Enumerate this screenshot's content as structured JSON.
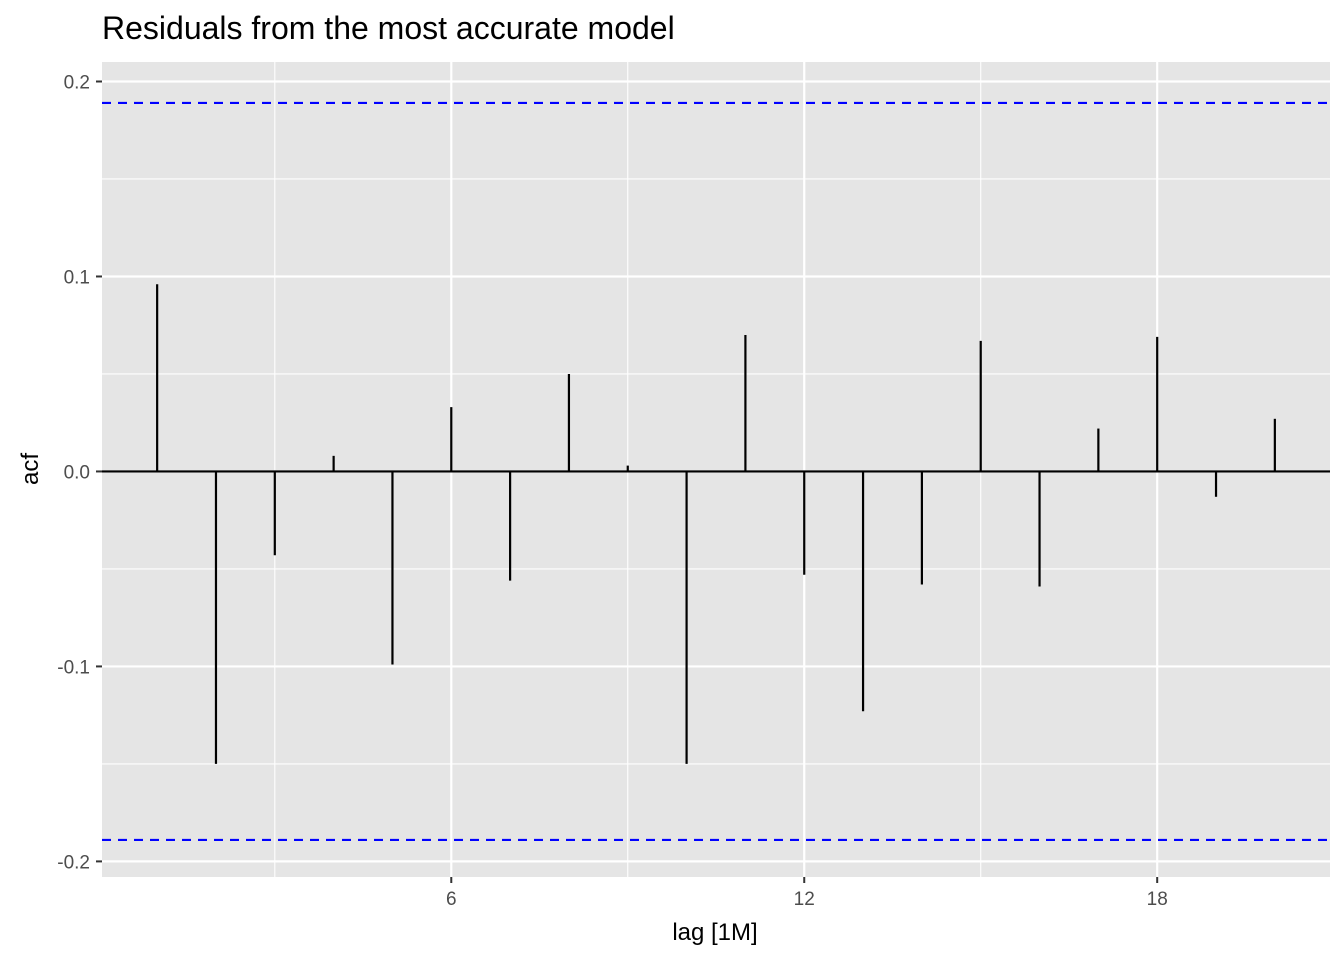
{
  "chart_data": {
    "type": "bar",
    "title": "Residuals from the most accurate model",
    "xlabel": "lag [1M]",
    "ylabel": "acf",
    "lags": [
      1,
      2,
      3,
      4,
      5,
      6,
      7,
      8,
      9,
      10,
      11,
      12,
      13,
      14,
      15,
      16,
      17,
      18,
      19,
      20
    ],
    "values": [
      0.096,
      -0.15,
      -0.043,
      0.008,
      -0.099,
      0.033,
      -0.056,
      0.05,
      0.003,
      -0.15,
      0.07,
      -0.053,
      -0.123,
      -0.058,
      0.067,
      -0.059,
      0.022,
      0.069,
      -0.013,
      0.027
    ],
    "confidence_bound": 0.189,
    "xlim": [
      0.0625,
      20.9375
    ],
    "ylim": [
      -0.208,
      0.21
    ],
    "x_ticks": [
      6,
      12,
      18
    ],
    "x_tick_labels": [
      "6",
      "12",
      "18"
    ],
    "y_ticks": [
      -0.2,
      -0.1,
      0.0,
      0.1,
      0.2
    ],
    "y_tick_labels": [
      "-0.2",
      "-0.1",
      "0.0",
      "0.1",
      "0.2"
    ],
    "grid": true,
    "colors": {
      "panel": "#e5e5e5",
      "grid": "#ffffff",
      "bar": "#000000",
      "confidence_line": "#0000ff"
    }
  }
}
